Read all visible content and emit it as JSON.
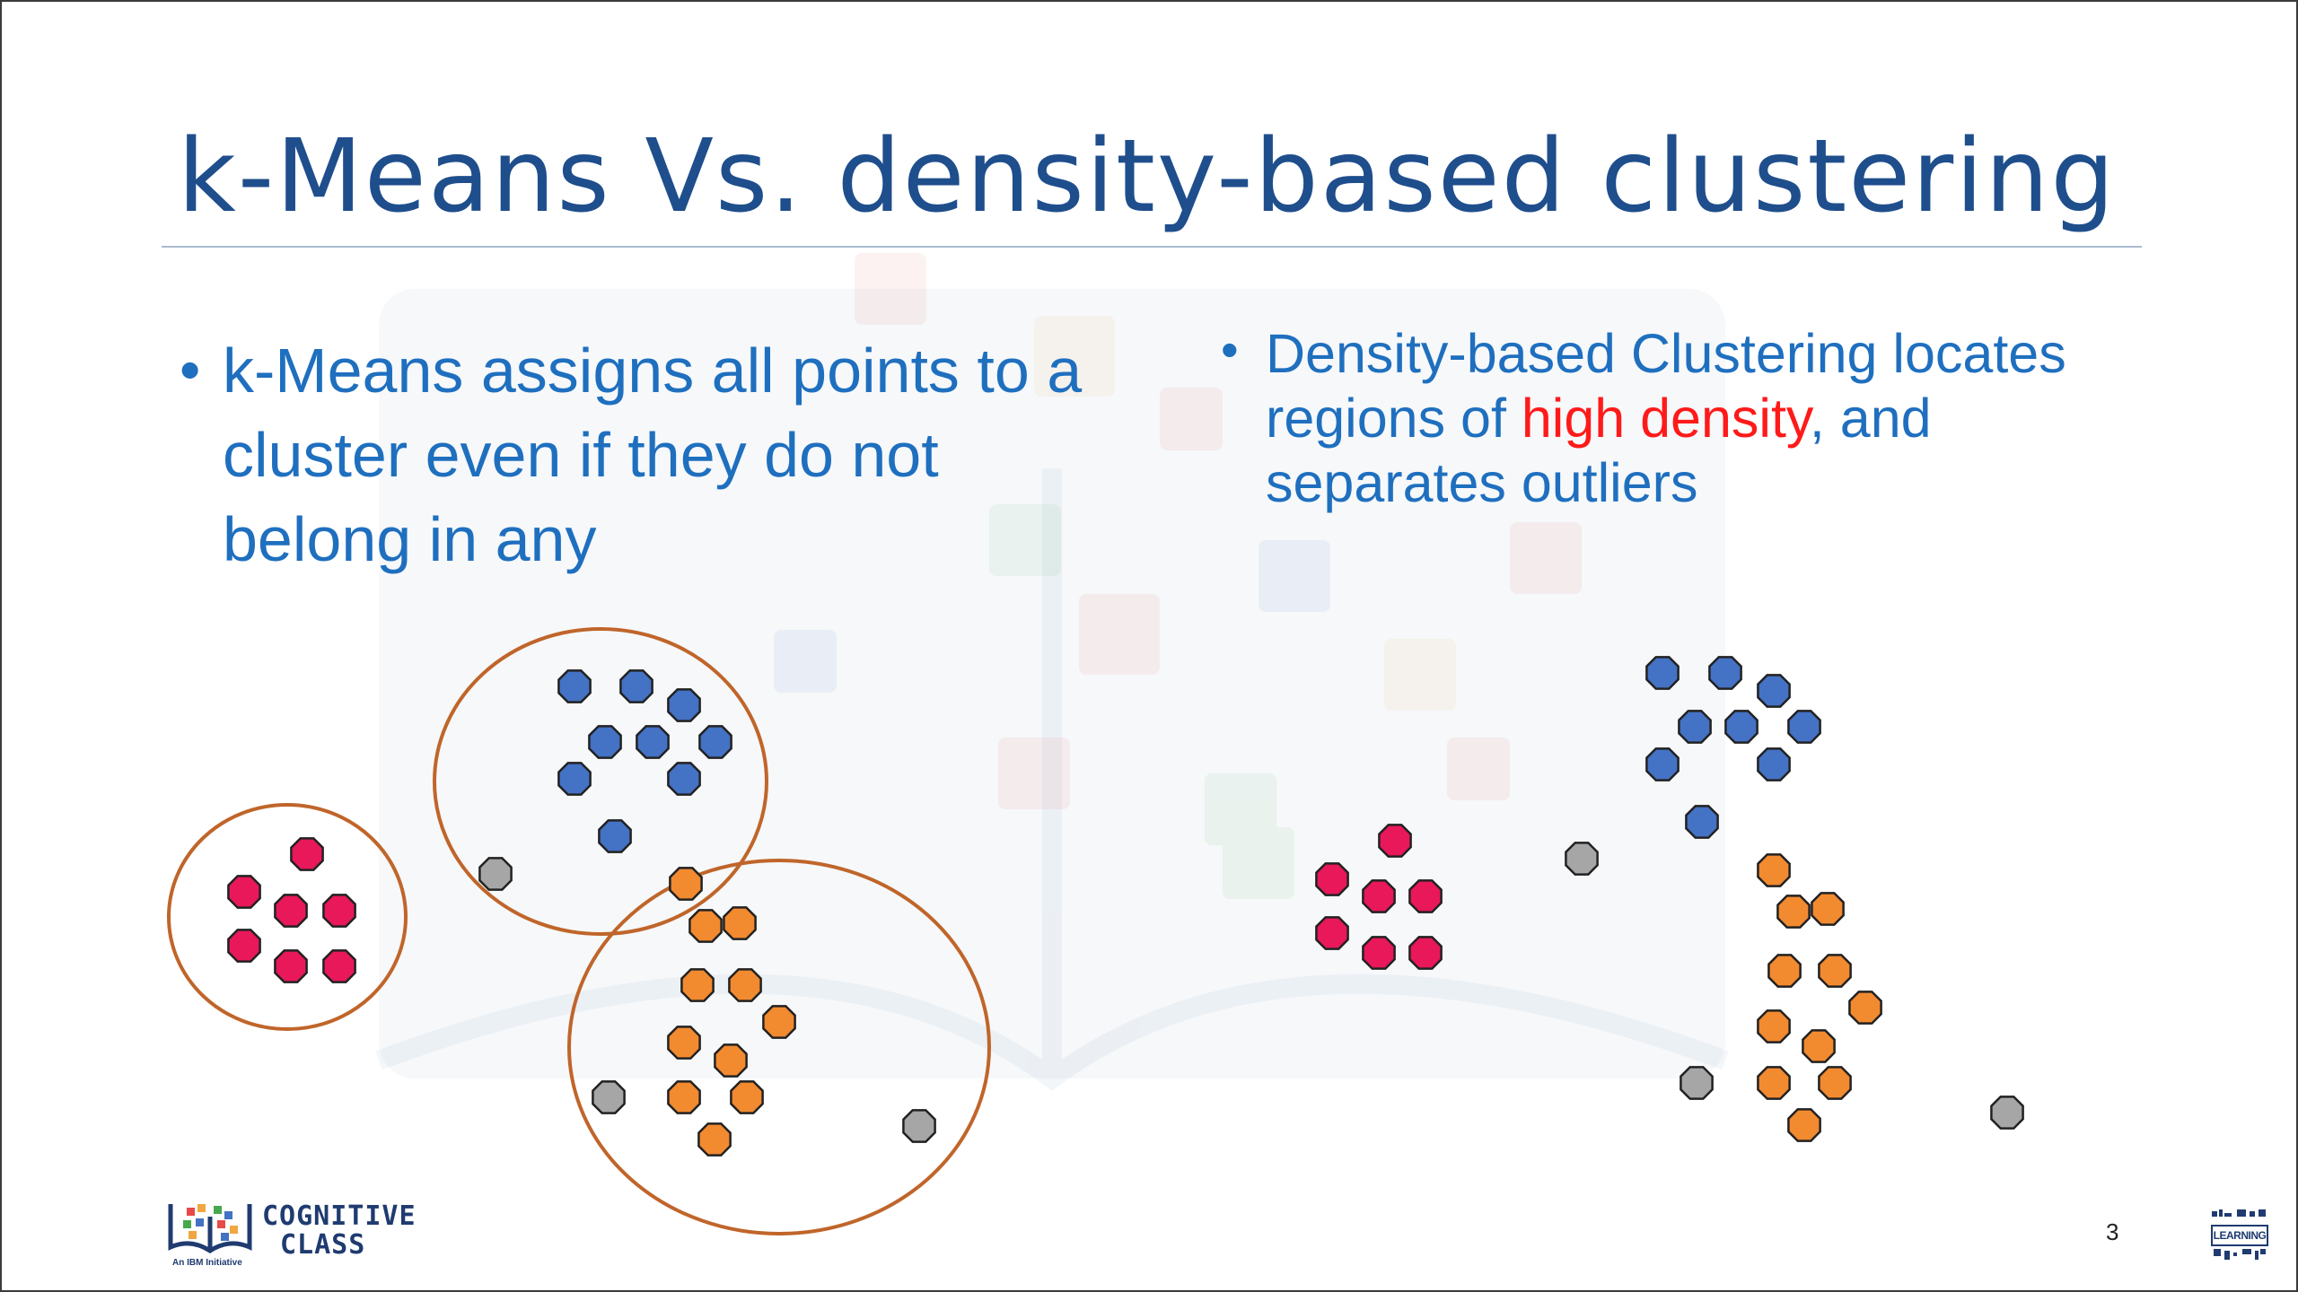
{
  "slide": {
    "title": "k-Means Vs. density-based clustering",
    "page_number": "3"
  },
  "bullets": {
    "bullet_glyph": "•",
    "left": {
      "text": "k-Means assigns all points to a cluster even if they do not belong in any"
    },
    "right": {
      "text_before": "Density-based Clustering locates regions of ",
      "highlight": "high density",
      "text_after": ", and separates outliers"
    }
  },
  "colors": {
    "title": "#1f4e8c",
    "bullet_text": "#1f6fbf",
    "highlight": "#ff1a1a",
    "blue_points": "#4472c4",
    "orange_points": "#f28a30",
    "pink_points": "#e8185a",
    "outlier_points": "#a6a6a6",
    "cluster_ellipse": "#c0652a"
  },
  "legend_icons": {
    "left_diagram": "kmeans-clusters-diagram",
    "right_diagram": "density-clusters-diagram",
    "point_shape": "octagon-icon"
  },
  "logo": {
    "line1": "COGNITIVE",
    "line2": "CLASS",
    "sub": "An IBM Initiative"
  },
  "bdu_logo": {
    "text": "LEARNING"
  }
}
